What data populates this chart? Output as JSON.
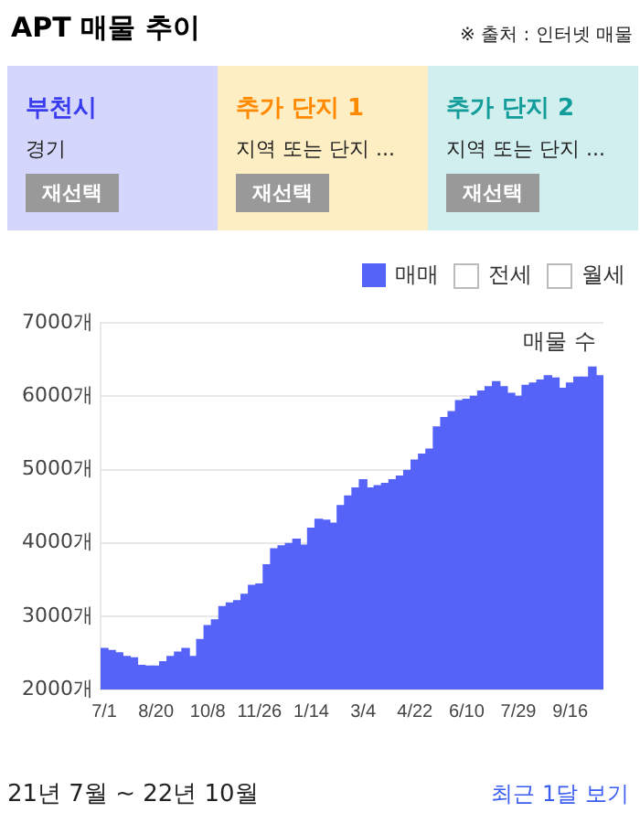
{
  "chart_data": {
    "type": "bar",
    "title": "APT 매물 추이",
    "categories": [
      "7/1",
      null,
      null,
      null,
      null,
      null,
      null,
      "8/20",
      null,
      null,
      null,
      null,
      null,
      null,
      "10/8",
      null,
      null,
      null,
      null,
      null,
      null,
      "11/26",
      null,
      null,
      null,
      null,
      null,
      null,
      "1/14",
      null,
      null,
      null,
      null,
      null,
      null,
      "3/4",
      null,
      null,
      null,
      null,
      null,
      null,
      "4/22",
      null,
      null,
      null,
      null,
      null,
      null,
      "6/10",
      null,
      null,
      null,
      null,
      null,
      null,
      "7/29",
      null,
      null,
      null,
      null,
      null,
      null,
      "9/16",
      null,
      null,
      null,
      null
    ],
    "series": [
      {
        "name": "매매",
        "color": "#5563f8",
        "values": [
          2560,
          2530,
          2500,
          2450,
          2430,
          2330,
          2320,
          2320,
          2380,
          2450,
          2510,
          2560,
          2450,
          2680,
          2870,
          2950,
          3130,
          3180,
          3210,
          3300,
          3420,
          3440,
          3700,
          3920,
          3960,
          3990,
          4050,
          3970,
          4200,
          4320,
          4310,
          4270,
          4510,
          4640,
          4750,
          4860,
          4750,
          4780,
          4810,
          4860,
          4910,
          4990,
          5130,
          5210,
          5280,
          5580,
          5710,
          5790,
          5940,
          5960,
          6000,
          6070,
          6130,
          6200,
          6130,
          6040,
          6000,
          6150,
          6180,
          6220,
          6280,
          6250,
          6110,
          6180,
          6260,
          6260,
          6400,
          6280
        ]
      }
    ],
    "ylim": [
      2000,
      7000
    ],
    "yticks": [
      {
        "value": 2000,
        "label": "2000개"
      },
      {
        "value": 3000,
        "label": "3000개"
      },
      {
        "value": 4000,
        "label": "4000개"
      },
      {
        "value": 5000,
        "label": "5000개"
      },
      {
        "value": 6000,
        "label": "6000개"
      },
      {
        "value": 7000,
        "label": "7000개"
      }
    ],
    "grid": "y",
    "legend": "top right",
    "annotations": [
      "※ 출처 : 인터넷 매물",
      "부천시",
      "경기",
      "재선택",
      "추가 단지 1",
      "지역 또는 단지 ...",
      "재선택",
      "추가 단지 2",
      "지역 또는 단지 ...",
      "재선택",
      "전세",
      "월세",
      "매물 수",
      "21년 7월 ~ 22년 10월",
      "최근 1달 보기"
    ]
  }
}
